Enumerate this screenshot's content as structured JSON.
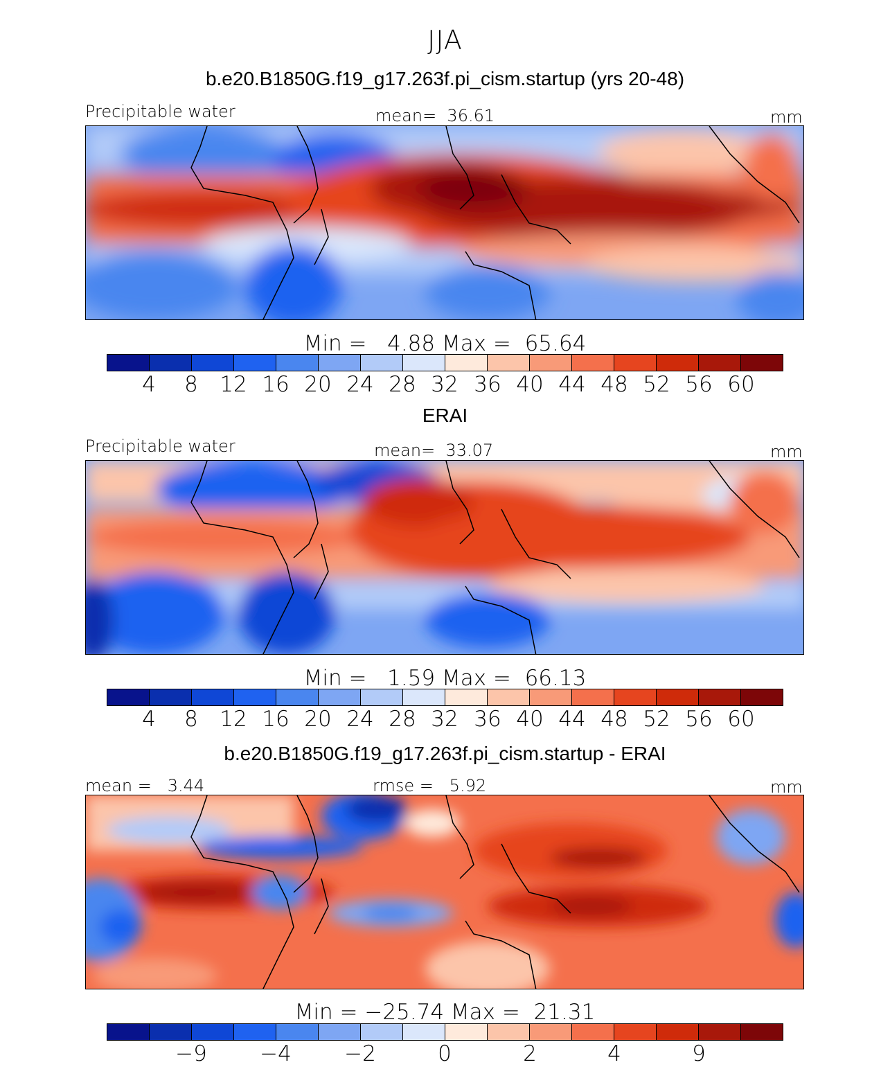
{
  "title": "JJA",
  "units_label": "mm",
  "variable_label": "Precipitable water",
  "colors": [
    "#08138c",
    "#0a2fae",
    "#0f47d6",
    "#1f62f0",
    "#4a86ef",
    "#7ea6f3",
    "#b2cbf8",
    "#dbe7fb",
    "#feeadc",
    "#fcc5aa",
    "#f89a78",
    "#f4704c",
    "#e6451f",
    "#cf2b0a",
    "#a8180a",
    "#7d0608"
  ],
  "panels": [
    {
      "name": "model",
      "title": "b.e20.B1850G.f19_g17.263f.pi_cism.startup (yrs 20-48)",
      "left_label": "Precipitable water",
      "center_label": "mean=  36.61",
      "right_label": "mm",
      "minmax": "Min =   4.88 Max =  65.64",
      "ticks": [
        "4",
        "8",
        "12",
        "16",
        "20",
        "24",
        "28",
        "32",
        "36",
        "40",
        "44",
        "48",
        "52",
        "56",
        "60"
      ]
    },
    {
      "name": "obs",
      "title": "ERAI",
      "left_label": "Precipitable water",
      "center_label": "mean=  33.07",
      "right_label": "mm",
      "minmax": "Min =   1.59 Max =  66.13",
      "ticks": [
        "4",
        "8",
        "12",
        "16",
        "20",
        "24",
        "28",
        "32",
        "36",
        "40",
        "44",
        "48",
        "52",
        "56",
        "60"
      ]
    },
    {
      "name": "diff",
      "title": "b.e20.B1850G.f19_g17.263f.pi_cism.startup - ERAI",
      "left_label": "mean =   3.44",
      "center_label": "rmse =   5.92",
      "right_label": "mm",
      "minmax": "Min = −25.74 Max =  21.31",
      "ticks": [
        "−9",
        "−4",
        "−2",
        "0",
        "2",
        "4",
        "9"
      ]
    }
  ]
}
